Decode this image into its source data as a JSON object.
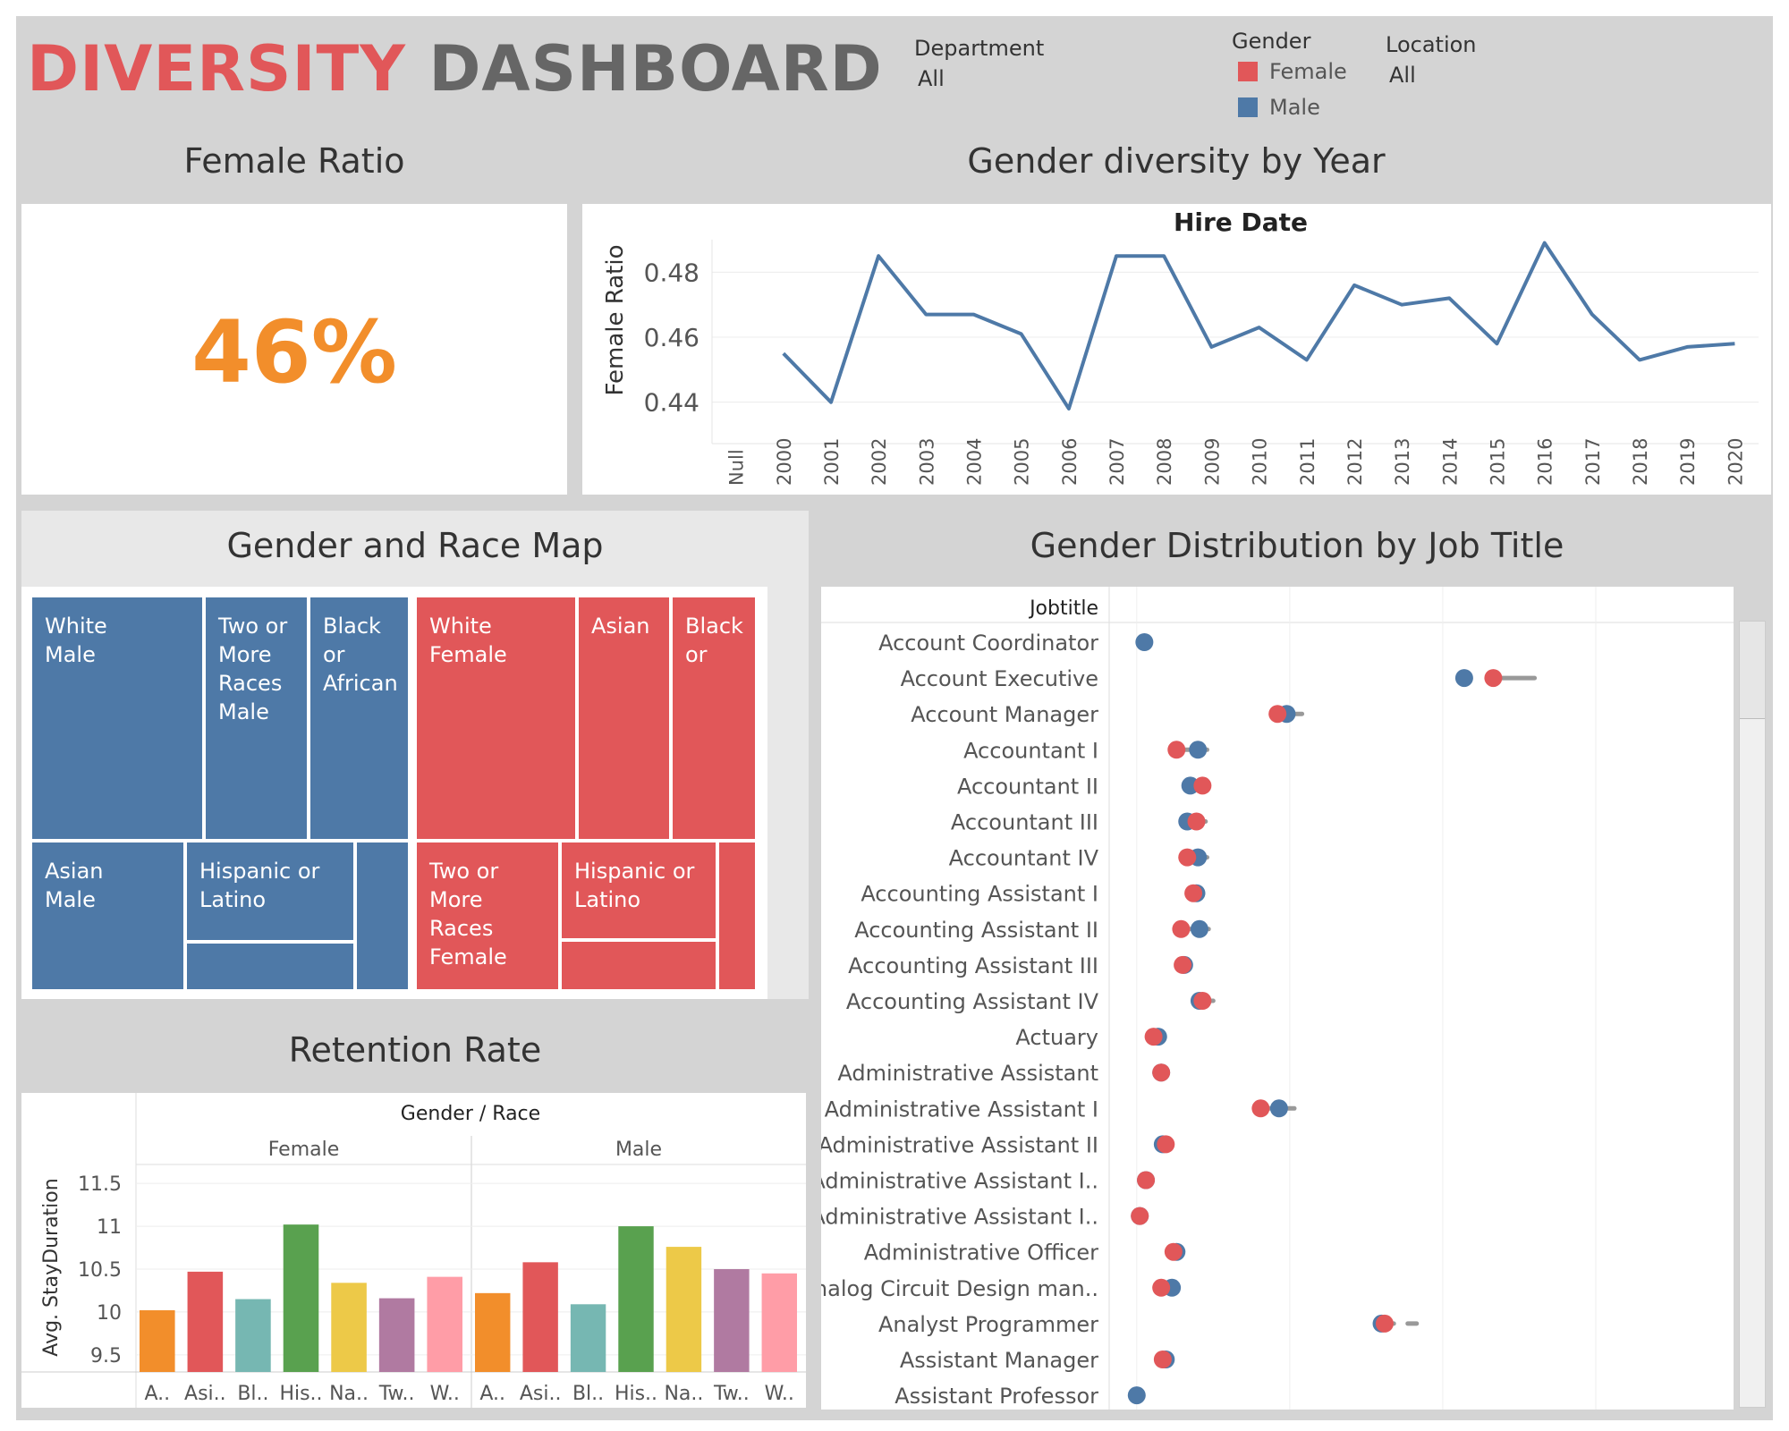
{
  "header": {
    "title_part1": "DIVERSITY",
    "title_part2": "DASHBOARD",
    "filters": {
      "department": {
        "label": "Department",
        "value": "All"
      },
      "gender": {
        "label": "Gender",
        "items": [
          {
            "label": "Female",
            "color": "#e15759"
          },
          {
            "label": "Male",
            "color": "#4e79a7"
          }
        ]
      },
      "location": {
        "label": "Location",
        "value": "All"
      }
    }
  },
  "female_ratio": {
    "title": "Female Ratio",
    "value": "46%",
    "color": "#f28e2b"
  },
  "gender_by_year": {
    "title": "Gender diversity by Year"
  },
  "race_map": {
    "title": "Gender and Race Map"
  },
  "retention": {
    "title": "Retention Rate"
  },
  "job_title": {
    "title": "Gender Distribution by Job Title"
  },
  "chart_data": [
    {
      "id": "line",
      "type": "line",
      "title": "Hire Date",
      "ylabel": "Female Ratio",
      "categories": [
        "Null",
        "2000",
        "2001",
        "2002",
        "2003",
        "2004",
        "2005",
        "2006",
        "2007",
        "2008",
        "2009",
        "2010",
        "2011",
        "2012",
        "2013",
        "2014",
        "2015",
        "2016",
        "2017",
        "2018",
        "2019",
        "2020"
      ],
      "values": [
        null,
        0.455,
        0.44,
        0.485,
        0.467,
        0.467,
        0.461,
        0.438,
        0.485,
        0.485,
        0.457,
        0.463,
        0.453,
        0.476,
        0.47,
        0.472,
        0.458,
        0.489,
        0.467,
        0.453,
        0.457,
        0.458
      ],
      "ylim": [
        0.43,
        0.49
      ],
      "yticks": [
        "0.44",
        "0.46",
        "0.48"
      ],
      "ytick_values": [
        0.44,
        0.46,
        0.48
      ],
      "color": "#4e79a7",
      "grid": true
    },
    {
      "id": "treemap",
      "type": "treemap",
      "cells": [
        {
          "label": "White Male",
          "lines": [
            "White",
            "Male"
          ],
          "gender": "Male"
        },
        {
          "label": "Two or More Races Male",
          "lines": [
            "Two or",
            "More",
            "Races",
            "Male"
          ],
          "gender": "Male"
        },
        {
          "label": "Black or African",
          "lines": [
            "Black",
            "or",
            "African"
          ],
          "gender": "Male"
        },
        {
          "label": "Asian Male",
          "lines": [
            "Asian",
            "Male"
          ],
          "gender": "Male"
        },
        {
          "label": "Hispanic or Latino",
          "lines": [
            "Hispanic or",
            "Latino"
          ],
          "gender": "Male"
        },
        {
          "label": "",
          "lines": [],
          "gender": "Male"
        },
        {
          "label": "",
          "lines": [],
          "gender": "Male"
        },
        {
          "label": "White Female",
          "lines": [
            "White",
            "Female"
          ],
          "gender": "Female"
        },
        {
          "label": "Asian",
          "lines": [
            "Asian"
          ],
          "gender": "Female"
        },
        {
          "label": "Black or",
          "lines": [
            "Black",
            "or"
          ],
          "gender": "Female"
        },
        {
          "label": "Two or More Races Female",
          "lines": [
            "Two or",
            "More",
            "Races",
            "Female"
          ],
          "gender": "Female"
        },
        {
          "label": "Hispanic or Latino",
          "lines": [
            "Hispanic or",
            "Latino"
          ],
          "gender": "Female"
        },
        {
          "label": "",
          "lines": [],
          "gender": "Female"
        },
        {
          "label": "",
          "lines": [],
          "gender": "Female"
        }
      ],
      "colors": {
        "Male": "#4e79a7",
        "Female": "#e15759"
      }
    },
    {
      "id": "retention",
      "type": "bar",
      "header": "Gender  /  Race",
      "ylabel": "Avg. StayDuration",
      "ylim": [
        9.3,
        11.7
      ],
      "yticks": [
        "9.5",
        "10",
        "10.5",
        "11",
        "11.5"
      ],
      "ytick_values": [
        9.5,
        10,
        10.5,
        11,
        11.5
      ],
      "groups": [
        "Female",
        "Male"
      ],
      "categories": [
        "A..",
        "Asi..",
        "Bl..",
        "His..",
        "Na..",
        "Tw..",
        "W.."
      ],
      "colors": [
        "#f28e2b",
        "#e15759",
        "#76b7b2",
        "#59a14f",
        "#edc948",
        "#b07aa1",
        "#ff9da7"
      ],
      "series": [
        {
          "name": "Female",
          "values": [
            10.02,
            10.47,
            10.15,
            11.02,
            10.34,
            10.16,
            10.41
          ]
        },
        {
          "name": "Male",
          "values": [
            10.22,
            10.58,
            10.09,
            11.0,
            10.76,
            10.5,
            10.45
          ]
        }
      ]
    },
    {
      "id": "dotplot",
      "type": "scatter",
      "header": "Jobtitle",
      "rows": [
        {
          "label": "Account Coordinator",
          "female": null,
          "male": 0.05,
          "bar": null
        },
        {
          "label": "Account Executive",
          "female": 2.33,
          "male": 2.14,
          "bar": [
            2.33,
            2.6
          ]
        },
        {
          "label": "Account Manager",
          "female": 0.92,
          "male": 0.98,
          "bar": [
            0.92,
            1.08
          ]
        },
        {
          "label": "Accountant I",
          "female": 0.26,
          "male": 0.4,
          "bar": [
            0.26,
            0.46
          ]
        },
        {
          "label": "Accountant II",
          "female": 0.43,
          "male": 0.35,
          "bar": [
            0.35,
            0.45
          ]
        },
        {
          "label": "Accountant III",
          "female": 0.39,
          "male": 0.33,
          "bar": [
            0.33,
            0.45
          ]
        },
        {
          "label": "Accountant IV",
          "female": 0.33,
          "male": 0.4,
          "bar": [
            0.33,
            0.46
          ]
        },
        {
          "label": "Accounting Assistant I",
          "female": 0.37,
          "male": 0.39,
          "bar": null
        },
        {
          "label": "Accounting Assistant II",
          "female": 0.29,
          "male": 0.41,
          "bar": [
            0.29,
            0.47
          ]
        },
        {
          "label": "Accounting Assistant III",
          "female": 0.3,
          "male": 0.31,
          "bar": null
        },
        {
          "label": "Accounting Assistant IV",
          "female": 0.43,
          "male": 0.41,
          "bar": [
            0.41,
            0.5
          ]
        },
        {
          "label": "Actuary",
          "female": 0.11,
          "male": 0.14,
          "bar": null
        },
        {
          "label": "Administrative Assistant",
          "female": 0.16,
          "male": 0.16,
          "bar": null
        },
        {
          "label": "Administrative Assistant I",
          "female": 0.81,
          "male": 0.93,
          "bar": [
            0.81,
            1.03
          ]
        },
        {
          "label": "Administrative Assistant II",
          "female": 0.19,
          "male": 0.17,
          "bar": null
        },
        {
          "label": "Administrative Assistant I..",
          "female": 0.06,
          "male": 0.06,
          "bar": null
        },
        {
          "label": "Administrative Assistant I..",
          "female": 0.02,
          "male": 0.02,
          "bar": null
        },
        {
          "label": "Administrative Officer",
          "female": 0.24,
          "male": 0.26,
          "bar": null
        },
        {
          "label": "Analog Circuit Design man..",
          "female": 0.16,
          "male": 0.23,
          "bar": null
        },
        {
          "label": "Analyst Programmer",
          "female": 1.62,
          "male": 1.6,
          "bar": [
            1.6,
            1.68
          ],
          "extra": 1.8
        },
        {
          "label": "Assistant Manager",
          "female": 0.17,
          "male": 0.19,
          "bar": null
        },
        {
          "label": "Assistant Professor",
          "female": null,
          "male": 0.0,
          "bar": null
        }
      ],
      "xlim": [
        -0.18,
        3.9
      ],
      "grid_x": [
        0,
        1,
        2,
        3
      ],
      "colors": {
        "female": "#e15759",
        "male": "#4e79a7",
        "bar": "#999999"
      }
    }
  ]
}
